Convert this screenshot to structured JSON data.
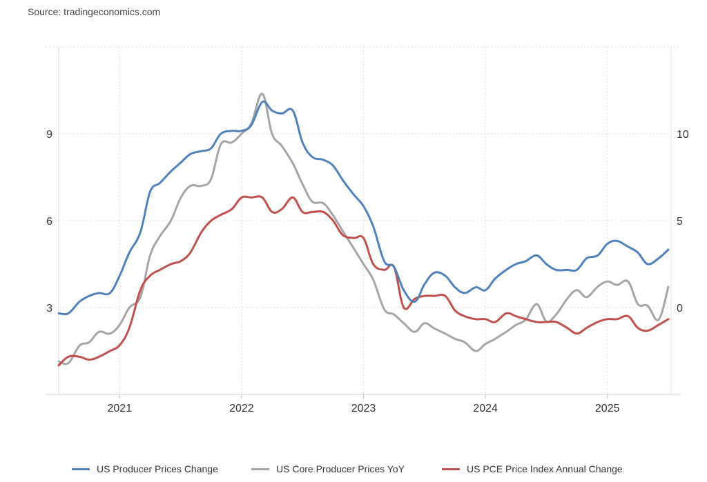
{
  "source": "Source: tradingeconomics.com",
  "chart_data": {
    "type": "line",
    "grid": true,
    "x_ticks": [
      "2021",
      "2022",
      "2023",
      "2024",
      "2025"
    ],
    "y_left": {
      "ticks": [
        "3",
        "6",
        "9"
      ],
      "ylim": [
        0,
        12
      ]
    },
    "y_right": {
      "ticks": [
        "0",
        "5",
        "10"
      ],
      "ylim": [
        -5,
        15
      ]
    },
    "series": [
      {
        "name": "US Producer Prices Change",
        "axis": "left",
        "color": "#4f81bd",
        "x": [
          2020.5,
          2020.58,
          2020.67,
          2020.75,
          2020.83,
          2020.92,
          2021.0,
          2021.08,
          2021.17,
          2021.25,
          2021.33,
          2021.42,
          2021.5,
          2021.58,
          2021.67,
          2021.75,
          2021.83,
          2021.92,
          2022.0,
          2022.08,
          2022.17,
          2022.25,
          2022.33,
          2022.42,
          2022.5,
          2022.58,
          2022.67,
          2022.75,
          2022.83,
          2022.92,
          2023.0,
          2023.08,
          2023.17,
          2023.25,
          2023.33,
          2023.42,
          2023.5,
          2023.58,
          2023.67,
          2023.75,
          2023.83,
          2023.92,
          2024.0,
          2024.08,
          2024.17,
          2024.25,
          2024.33,
          2024.42,
          2024.5,
          2024.58,
          2024.67,
          2024.75,
          2024.83,
          2024.92,
          2025.0,
          2025.08,
          2025.17,
          2025.25,
          2025.33,
          2025.42,
          2025.5
        ],
        "y": [
          2.8,
          2.8,
          3.2,
          3.4,
          3.5,
          3.5,
          4.1,
          4.9,
          5.6,
          7.0,
          7.3,
          7.7,
          8.0,
          8.3,
          8.4,
          8.5,
          9.0,
          9.1,
          9.1,
          9.3,
          10.1,
          9.8,
          9.7,
          9.8,
          8.7,
          8.2,
          8.1,
          7.9,
          7.4,
          6.9,
          6.5,
          5.8,
          4.6,
          4.4,
          3.6,
          3.2,
          3.8,
          4.2,
          4.1,
          3.7,
          3.5,
          3.7,
          3.6,
          4.0,
          4.3,
          4.5,
          4.6,
          4.8,
          4.5,
          4.3,
          4.3,
          4.3,
          4.7,
          4.8,
          5.2,
          5.3,
          5.1,
          4.9,
          4.5,
          4.7,
          5.0
        ]
      },
      {
        "name": "US Core Producer Prices YoY",
        "axis": "right",
        "color": "#a5a5a5",
        "x": [
          2020.5,
          2020.58,
          2020.67,
          2020.75,
          2020.83,
          2020.92,
          2021.0,
          2021.08,
          2021.17,
          2021.25,
          2021.33,
          2021.42,
          2021.5,
          2021.58,
          2021.67,
          2021.75,
          2021.83,
          2021.92,
          2022.0,
          2022.08,
          2022.17,
          2022.25,
          2022.33,
          2022.42,
          2022.5,
          2022.58,
          2022.67,
          2022.75,
          2022.83,
          2022.92,
          2023.0,
          2023.08,
          2023.17,
          2023.25,
          2023.33,
          2023.42,
          2023.5,
          2023.58,
          2023.67,
          2023.75,
          2023.83,
          2023.92,
          2024.0,
          2024.08,
          2024.17,
          2024.25,
          2024.33,
          2024.42,
          2024.5,
          2024.58,
          2024.67,
          2024.75,
          2024.83,
          2024.92,
          2025.0,
          2025.08,
          2025.17,
          2025.25,
          2025.33,
          2025.42,
          2025.5
        ],
        "y": [
          -3.1,
          -3.2,
          -2.2,
          -2.0,
          -1.4,
          -1.5,
          -1.0,
          0.0,
          0.6,
          3.0,
          4.1,
          5.0,
          6.3,
          7.0,
          7.0,
          7.4,
          9.4,
          9.5,
          10.0,
          10.6,
          12.3,
          10.0,
          9.3,
          8.3,
          7.1,
          6.1,
          6.0,
          5.3,
          4.4,
          3.4,
          2.5,
          1.6,
          -0.1,
          -0.4,
          -0.9,
          -1.4,
          -0.9,
          -1.2,
          -1.5,
          -1.8,
          -2.0,
          -2.5,
          -2.1,
          -1.8,
          -1.4,
          -1.0,
          -0.7,
          0.2,
          -0.8,
          -0.4,
          0.5,
          1.0,
          0.6,
          1.2,
          1.5,
          1.3,
          1.5,
          0.2,
          0.1,
          -0.7,
          1.2
        ]
      },
      {
        "name": "US PCE Price Index Annual Change",
        "axis": "left",
        "color": "#c0504d",
        "x": [
          2020.5,
          2020.58,
          2020.67,
          2020.75,
          2020.83,
          2020.92,
          2021.0,
          2021.08,
          2021.17,
          2021.25,
          2021.33,
          2021.42,
          2021.5,
          2021.58,
          2021.67,
          2021.75,
          2021.83,
          2021.92,
          2022.0,
          2022.08,
          2022.17,
          2022.25,
          2022.33,
          2022.42,
          2022.5,
          2022.58,
          2022.67,
          2022.75,
          2022.83,
          2022.92,
          2023.0,
          2023.08,
          2023.17,
          2023.25,
          2023.33,
          2023.42,
          2023.5,
          2023.58,
          2023.67,
          2023.75,
          2023.83,
          2023.92,
          2024.0,
          2024.08,
          2024.17,
          2024.25,
          2024.33,
          2024.42,
          2024.5,
          2024.58,
          2024.67,
          2024.75,
          2024.83,
          2024.92,
          2025.0,
          2025.08,
          2025.17,
          2025.25,
          2025.33,
          2025.42,
          2025.5
        ],
        "y": [
          1.0,
          1.3,
          1.3,
          1.2,
          1.3,
          1.5,
          1.7,
          2.3,
          3.6,
          4.1,
          4.3,
          4.5,
          4.6,
          4.9,
          5.6,
          6.0,
          6.2,
          6.4,
          6.8,
          6.8,
          6.8,
          6.3,
          6.4,
          6.8,
          6.3,
          6.3,
          6.3,
          6.0,
          5.5,
          5.4,
          5.4,
          4.5,
          4.3,
          4.4,
          3.0,
          3.3,
          3.4,
          3.4,
          3.4,
          2.9,
          2.7,
          2.6,
          2.6,
          2.5,
          2.8,
          2.7,
          2.6,
          2.5,
          2.5,
          2.5,
          2.3,
          2.1,
          2.3,
          2.5,
          2.6,
          2.6,
          2.7,
          2.3,
          2.2,
          2.4,
          2.6
        ]
      }
    ]
  }
}
